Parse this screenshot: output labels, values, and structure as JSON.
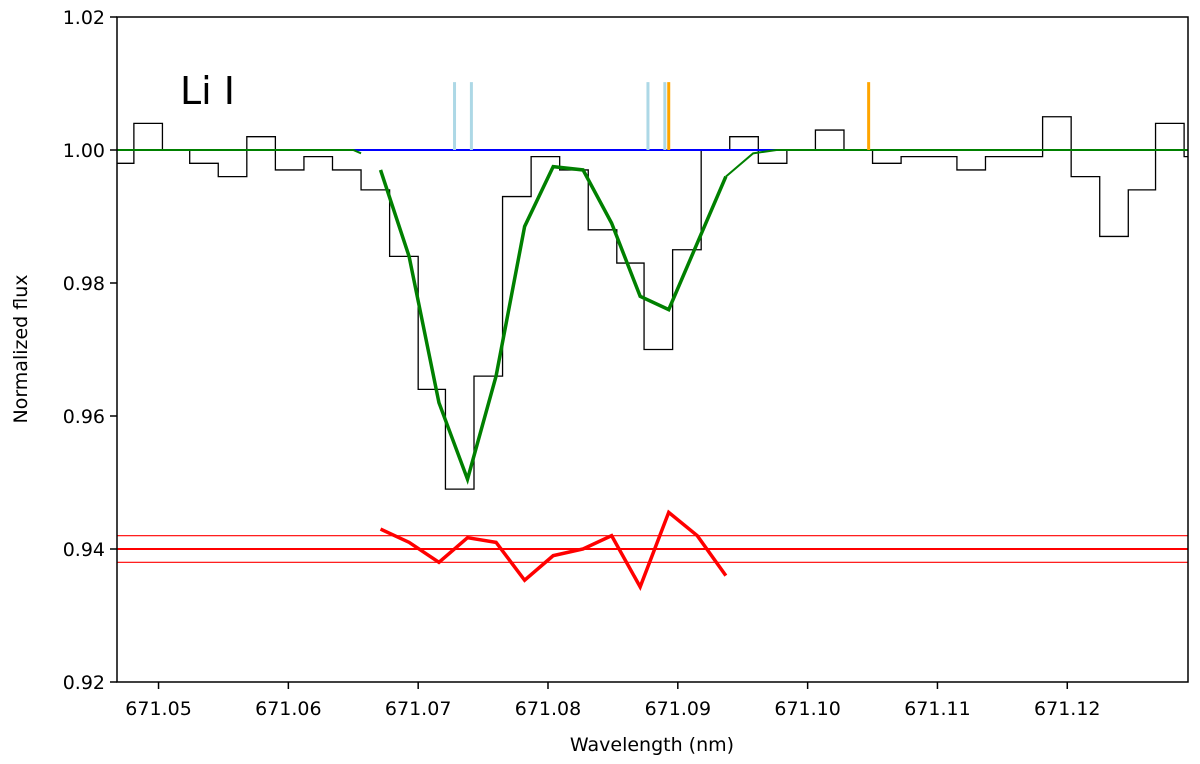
{
  "chart_data": {
    "type": "line",
    "title": "",
    "xlabel": "Wavelength (nm)",
    "ylabel": "Normalized flux",
    "xlim": [
      671.0468,
      671.1293
    ],
    "ylim": [
      0.92,
      1.02
    ],
    "x_ticks": [
      671.05,
      671.06,
      671.07,
      671.08,
      671.09,
      671.1,
      671.11,
      671.12
    ],
    "x_tick_labels": [
      "671.05",
      "671.06",
      "671.07",
      "671.08",
      "671.09",
      "671.10",
      "671.11",
      "671.12"
    ],
    "y_ticks": [
      0.92,
      0.94,
      0.96,
      0.98,
      1.0,
      1.02
    ],
    "y_tick_labels": [
      "0.92",
      "0.94",
      "0.96",
      "0.98",
      "1.00",
      "1.02"
    ],
    "grid": false,
    "annotation": "Li I",
    "colors": {
      "observed": "#000000",
      "continuum": "#0000ff",
      "model": "#008000",
      "residual": "#ff0000",
      "line_marker_a": "#add8e6",
      "line_marker_b": "#ffa500"
    },
    "series": [
      {
        "key": "observed",
        "style": "steps",
        "x": [
          671.0468,
          671.0481,
          671.0503,
          671.0524,
          671.0546,
          671.0568,
          671.059,
          671.0612,
          671.0634,
          671.0656,
          671.0678,
          671.07,
          671.0721,
          671.0743,
          671.0765,
          671.0787,
          671.0809,
          671.0831,
          671.0853,
          671.0874,
          671.0896,
          671.0918,
          671.094,
          671.0962,
          671.0984,
          671.1006,
          671.1028,
          671.105,
          671.1072,
          671.1093,
          671.1115,
          671.1137,
          671.1159,
          671.1181,
          671.1203,
          671.1225,
          671.1247,
          671.1268,
          671.129
        ],
        "y": [
          0.998,
          1.004,
          1.0,
          0.998,
          0.996,
          1.002,
          0.997,
          0.999,
          0.997,
          0.994,
          0.984,
          0.964,
          0.949,
          0.966,
          0.993,
          0.999,
          0.997,
          0.988,
          0.983,
          0.97,
          0.985,
          1.0,
          1.002,
          0.998,
          1.0,
          1.003,
          1.0,
          0.998,
          0.999,
          0.999,
          0.997,
          0.999,
          0.999,
          1.005,
          0.996,
          0.987,
          0.994,
          1.004,
          0.999
        ]
      },
      {
        "key": "continuum",
        "style": "line",
        "x": [
          671.0468,
          671.1293
        ],
        "y": [
          1.0,
          1.0
        ]
      },
      {
        "key": "model",
        "style": "line",
        "x": [
          671.0468,
          671.0503,
          671.0568,
          671.0634,
          671.065,
          671.0656
        ],
        "y": [
          1.0,
          1.0,
          1.0,
          1.0,
          1.0,
          0.9995
        ]
      },
      {
        "key": "model",
        "style": "line-thick",
        "x": [
          671.0671,
          671.0693,
          671.0716,
          671.0738,
          671.076,
          671.0782,
          671.0804,
          671.0827,
          671.0849,
          671.0871,
          671.0893,
          671.0915,
          671.0937
        ],
        "y": [
          0.997,
          0.984,
          0.962,
          0.9505,
          0.966,
          0.9885,
          0.9975,
          0.997,
          0.989,
          0.978,
          0.976,
          0.986,
          0.996
        ]
      },
      {
        "key": "model",
        "style": "line",
        "x": [
          671.0937,
          671.0958,
          671.0976,
          671.1006,
          671.1293
        ],
        "y": [
          0.996,
          0.9995,
          1.0,
          1.0,
          1.0
        ]
      },
      {
        "key": "residual",
        "style": "line-thick",
        "x": [
          671.0671,
          671.0693,
          671.0716,
          671.0738,
          671.076,
          671.0782,
          671.0804,
          671.0827,
          671.0849,
          671.0871,
          671.0893,
          671.0915,
          671.0937
        ],
        "y": [
          0.943,
          0.941,
          0.938,
          0.9417,
          0.941,
          0.9353,
          0.939,
          0.94,
          0.942,
          0.9343,
          0.9455,
          0.942,
          0.936
        ]
      }
    ],
    "hlines": [
      {
        "key": "residual",
        "y": 0.942,
        "width": "thin"
      },
      {
        "key": "residual",
        "y": 0.94,
        "width": "medium"
      },
      {
        "key": "residual",
        "y": 0.938,
        "width": "thin"
      }
    ],
    "line_markers": [
      {
        "x": 671.0728,
        "y0": 1.0,
        "y1": 1.0102,
        "color_key": "line_marker_a"
      },
      {
        "x": 671.0741,
        "y0": 1.0,
        "y1": 1.0102,
        "color_key": "line_marker_a"
      },
      {
        "x": 671.0877,
        "y0": 1.0,
        "y1": 1.0102,
        "color_key": "line_marker_a"
      },
      {
        "x": 671.089,
        "y0": 1.0,
        "y1": 1.0102,
        "color_key": "line_marker_a"
      },
      {
        "x": 671.0893,
        "y0": 1.0,
        "y1": 1.0102,
        "color_key": "line_marker_b"
      },
      {
        "x": 671.1047,
        "y0": 1.0,
        "y1": 1.0102,
        "color_key": "line_marker_b"
      }
    ]
  }
}
